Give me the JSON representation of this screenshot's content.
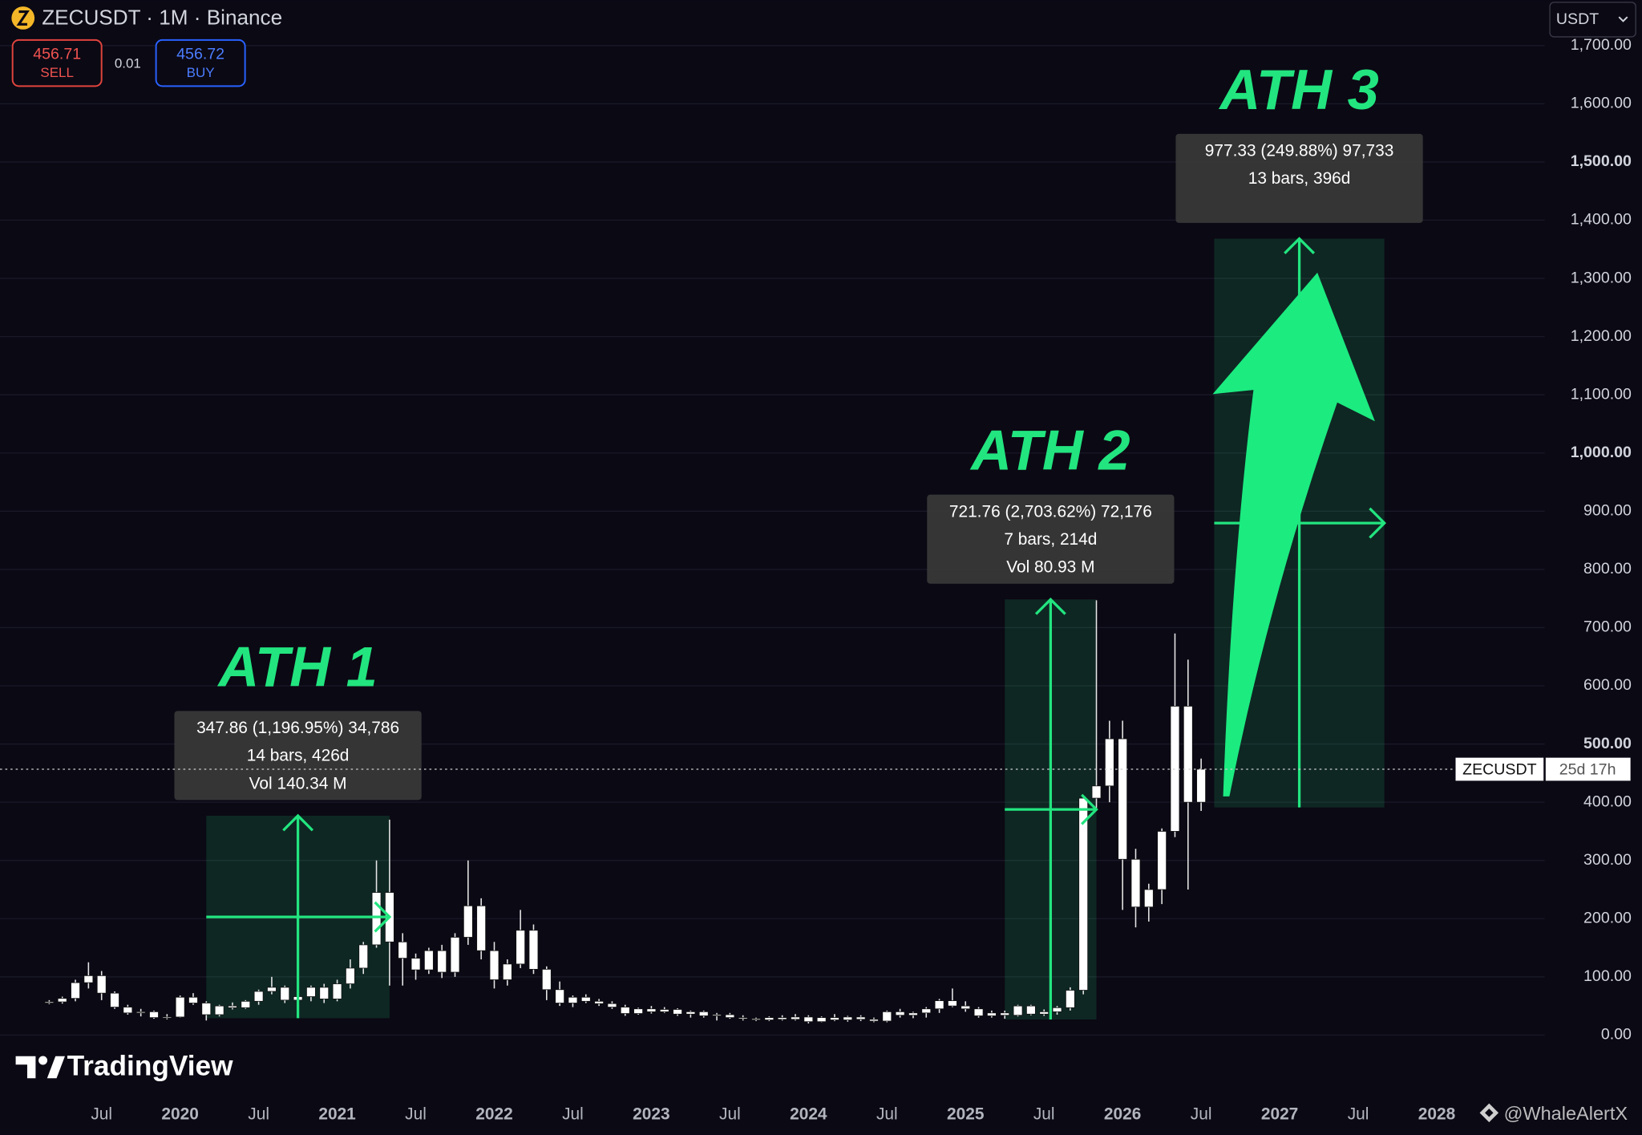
{
  "header": {
    "title": "ZECUSDT · 1M · Binance",
    "sell": {
      "price": 456.71,
      "label": "SELL"
    },
    "spread": 0.01,
    "buy": {
      "price": 456.72,
      "label": "BUY"
    },
    "currency": "USDT"
  },
  "branding": "TradingView",
  "watermark": "@WhaleAlertX",
  "chart_data": {
    "type": "candlestick",
    "color": "#ffffff",
    "measure_color": "#22e57f",
    "x": [
      "2019-03",
      "2019-04",
      "2019-05",
      "2019-06",
      "2019-07",
      "2019-08",
      "2019-09",
      "2019-10",
      "2019-11",
      "2019-12",
      "2020-01",
      "2020-02",
      "2020-03",
      "2020-04",
      "2020-05",
      "2020-06",
      "2020-07",
      "2020-08",
      "2020-09",
      "2020-10",
      "2020-11",
      "2020-12",
      "2021-01",
      "2021-02",
      "2021-03",
      "2021-04",
      "2021-05",
      "2021-06",
      "2021-07",
      "2021-08",
      "2021-09",
      "2021-10",
      "2021-11",
      "2021-12",
      "2022-01",
      "2022-02",
      "2022-03",
      "2022-04",
      "2022-05",
      "2022-06",
      "2022-07",
      "2022-08",
      "2022-09",
      "2022-10",
      "2022-11",
      "2022-12",
      "2023-01",
      "2023-02",
      "2023-03",
      "2023-04",
      "2023-05",
      "2023-06",
      "2023-07",
      "2023-08",
      "2023-09",
      "2023-10",
      "2023-11",
      "2023-12",
      "2024-01",
      "2024-02",
      "2024-03",
      "2024-04",
      "2024-05",
      "2024-06",
      "2024-07",
      "2024-08",
      "2024-09",
      "2024-10",
      "2024-11",
      "2024-12",
      "2025-01",
      "2025-02",
      "2025-03",
      "2025-04",
      "2025-05",
      "2025-06",
      "2025-07",
      "2025-08",
      "2025-09",
      "2025-10",
      "2025-11",
      "2025-12",
      "2026-01",
      "2026-02",
      "2026-03",
      "2026-04",
      "2026-05",
      "2026-06",
      "2026-07"
    ],
    "open": [
      55,
      57,
      63,
      90,
      102,
      72,
      48,
      38,
      40,
      30,
      31,
      65,
      55,
      35,
      50,
      47,
      58,
      75,
      82,
      60,
      66,
      82,
      62,
      88,
      115,
      155,
      245,
      160,
      132,
      112,
      145,
      108,
      168,
      222,
      145,
      95,
      122,
      180,
      113,
      78,
      55,
      65,
      58,
      54,
      48,
      37,
      45,
      40,
      44,
      36,
      40,
      33,
      35,
      30,
      28,
      26,
      30,
      27,
      31,
      23,
      30,
      26,
      31,
      27,
      24,
      40,
      34,
      38,
      45,
      59,
      50,
      45,
      33,
      38,
      34,
      50,
      36,
      40,
      47,
      77,
      407,
      428,
      509,
      302,
      220,
      250,
      350,
      565,
      400
    ],
    "high": [
      60,
      66,
      95,
      125,
      110,
      75,
      52,
      45,
      42,
      36,
      68,
      72,
      58,
      52,
      56,
      60,
      78,
      100,
      85,
      72,
      85,
      88,
      95,
      130,
      160,
      300,
      370,
      175,
      140,
      150,
      155,
      175,
      300,
      235,
      160,
      130,
      215,
      190,
      118,
      92,
      68,
      70,
      62,
      58,
      52,
      47,
      50,
      48,
      46,
      42,
      42,
      38,
      38,
      34,
      30,
      32,
      34,
      36,
      34,
      32,
      36,
      33,
      34,
      30,
      42,
      45,
      40,
      48,
      62,
      80,
      58,
      48,
      42,
      42,
      52,
      52,
      44,
      50,
      82,
      410,
      747,
      540,
      540,
      320,
      260,
      355,
      690,
      645,
      475
    ],
    "low": [
      53,
      54,
      58,
      80,
      60,
      45,
      35,
      32,
      28,
      27,
      30,
      52,
      25,
      32,
      44,
      45,
      52,
      70,
      55,
      55,
      58,
      55,
      58,
      80,
      105,
      150,
      85,
      85,
      95,
      105,
      98,
      100,
      155,
      130,
      80,
      85,
      115,
      105,
      60,
      50,
      48,
      55,
      50,
      45,
      33,
      35,
      37,
      38,
      33,
      30,
      30,
      25,
      28,
      25,
      24,
      24,
      25,
      25,
      20,
      22,
      24,
      23,
      24,
      22,
      22,
      30,
      29,
      30,
      38,
      48,
      40,
      30,
      30,
      28,
      32,
      34,
      33,
      35,
      42,
      70,
      390,
      400,
      215,
      185,
      195,
      225,
      340,
      250,
      385
    ],
    "close": [
      57,
      63,
      90,
      102,
      72,
      48,
      38,
      40,
      30,
      31,
      65,
      55,
      35,
      50,
      47,
      58,
      75,
      82,
      60,
      66,
      82,
      62,
      88,
      115,
      155,
      245,
      160,
      132,
      112,
      145,
      108,
      168,
      222,
      145,
      95,
      122,
      180,
      113,
      78,
      55,
      65,
      58,
      54,
      48,
      37,
      45,
      40,
      44,
      36,
      40,
      33,
      35,
      30,
      28,
      26,
      30,
      27,
      31,
      23,
      30,
      26,
      31,
      27,
      24,
      40,
      34,
      38,
      45,
      59,
      50,
      45,
      33,
      38,
      34,
      50,
      36,
      40,
      47,
      77,
      407,
      428,
      509,
      302,
      220,
      250,
      350,
      565,
      400,
      456.71
    ],
    "xlim": [
      "2018-11",
      "2028-09"
    ],
    "xticks": [
      {
        "value": "2019-07",
        "label": "Jul"
      },
      {
        "value": "2020-01",
        "label": "2020"
      },
      {
        "value": "2020-07",
        "label": "Jul"
      },
      {
        "value": "2021-01",
        "label": "2021"
      },
      {
        "value": "2021-07",
        "label": "Jul"
      },
      {
        "value": "2022-01",
        "label": "2022"
      },
      {
        "value": "2022-07",
        "label": "Jul"
      },
      {
        "value": "2023-01",
        "label": "2023"
      },
      {
        "value": "2023-07",
        "label": "Jul"
      },
      {
        "value": "2024-01",
        "label": "2024"
      },
      {
        "value": "2024-07",
        "label": "Jul"
      },
      {
        "value": "2025-01",
        "label": "2025"
      },
      {
        "value": "2025-07",
        "label": "Jul"
      },
      {
        "value": "2026-01",
        "label": "2026"
      },
      {
        "value": "2026-07",
        "label": "Jul"
      },
      {
        "value": "2027-01",
        "label": "2027"
      },
      {
        "value": "2027-07",
        "label": "Jul"
      },
      {
        "value": "2028-01",
        "label": "2028"
      }
    ],
    "ylim": [
      -94,
      1778
    ],
    "yticks": [
      {
        "value": 0,
        "label": "0.00"
      },
      {
        "value": 100,
        "label": "100.00"
      },
      {
        "value": 200,
        "label": "200.00"
      },
      {
        "value": 300,
        "label": "300.00"
      },
      {
        "value": 400,
        "label": "400.00"
      },
      {
        "value": 500,
        "label": "500.00"
      },
      {
        "value": 600,
        "label": "600.00"
      },
      {
        "value": 700,
        "label": "700.00"
      },
      {
        "value": 800,
        "label": "800.00"
      },
      {
        "value": 900,
        "label": "900.00"
      },
      {
        "value": 1000,
        "label": "1,000.00"
      },
      {
        "value": 1100,
        "label": "1,100.00"
      },
      {
        "value": 1200,
        "label": "1,200.00"
      },
      {
        "value": 1300,
        "label": "1,300.00"
      },
      {
        "value": 1400,
        "label": "1,400.00"
      },
      {
        "value": 1500,
        "label": "1,500.00"
      },
      {
        "value": 1600,
        "label": "1,600.00"
      },
      {
        "value": 1700,
        "label": "1,700.00"
      }
    ],
    "grid": true,
    "price_tag": {
      "symbol": "ZECUSDT",
      "countdown": "25d 17h"
    },
    "measures": [
      {
        "title": "ATH 1",
        "lines": [
          "347.86 (1,196.95%) 34,786",
          "14 bars, 426d",
          "Vol 140.34 M"
        ],
        "from": {
          "x": "2020-03",
          "price": 29
        },
        "to": {
          "x": "2021-05",
          "price": 376.86
        }
      },
      {
        "title": "ATH 2",
        "lines": [
          "721.76 (2,703.62%) 72,176",
          "7 bars, 214d",
          "Vol 80.93 M"
        ],
        "from": {
          "x": "2025-04",
          "price": 26.7
        },
        "to": {
          "x": "2025-11",
          "price": 748.46
        }
      },
      {
        "title": "ATH 3",
        "lines": [
          "977.33 (249.88%) 97,733",
          "13 bars, 396d"
        ],
        "from": {
          "x": "2026-08",
          "price": 391
        },
        "to": {
          "x": "2027-09",
          "price": 1368.33
        }
      }
    ]
  }
}
